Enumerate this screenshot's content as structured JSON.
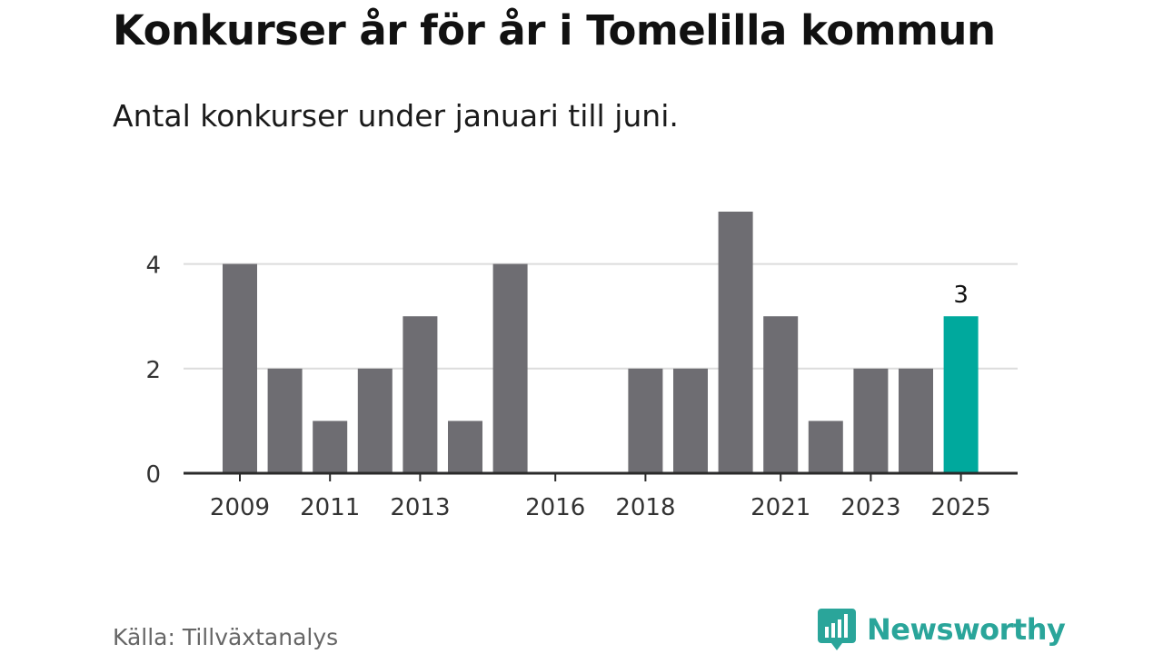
{
  "header": {
    "title": "Konkurser år för år i Tomelilla kommun",
    "subtitle": "Antal konkurser under januari till juni."
  },
  "footer": {
    "source": "Källa: Tillväxtanalys",
    "brand": "Newsworthy"
  },
  "colors": {
    "bar": "#6e6d72",
    "highlight": "#00a99d",
    "brand": "#2aa59a",
    "grid": "#dcdcdc",
    "axis": "#2a2a2a"
  },
  "icons": {
    "brand_logo": "newsworthy-bar-chart-bubble-icon"
  },
  "chart_data": {
    "type": "bar",
    "title": "Konkurser år för år i Tomelilla kommun",
    "subtitle": "Antal konkurser under januari till juni.",
    "categories": [
      "2009",
      "2010",
      "2011",
      "2012",
      "2013",
      "2014",
      "2015",
      "2016",
      "2017",
      "2018",
      "2019",
      "2020",
      "2021",
      "2022",
      "2023",
      "2024",
      "2025"
    ],
    "values": [
      4,
      2,
      1,
      2,
      3,
      1,
      4,
      0,
      0,
      2,
      2,
      5,
      3,
      1,
      2,
      2,
      3
    ],
    "x_tick_labels": [
      "2009",
      "2011",
      "2013",
      "2016",
      "2018",
      "2021",
      "2023",
      "2025"
    ],
    "y_ticks": [
      0,
      2,
      4
    ],
    "ylim": [
      0,
      5
    ],
    "xlabel": "",
    "ylabel": "",
    "grid": true,
    "highlight_category": "2025",
    "data_labels": [
      {
        "category": "2025",
        "text": "3"
      }
    ]
  }
}
